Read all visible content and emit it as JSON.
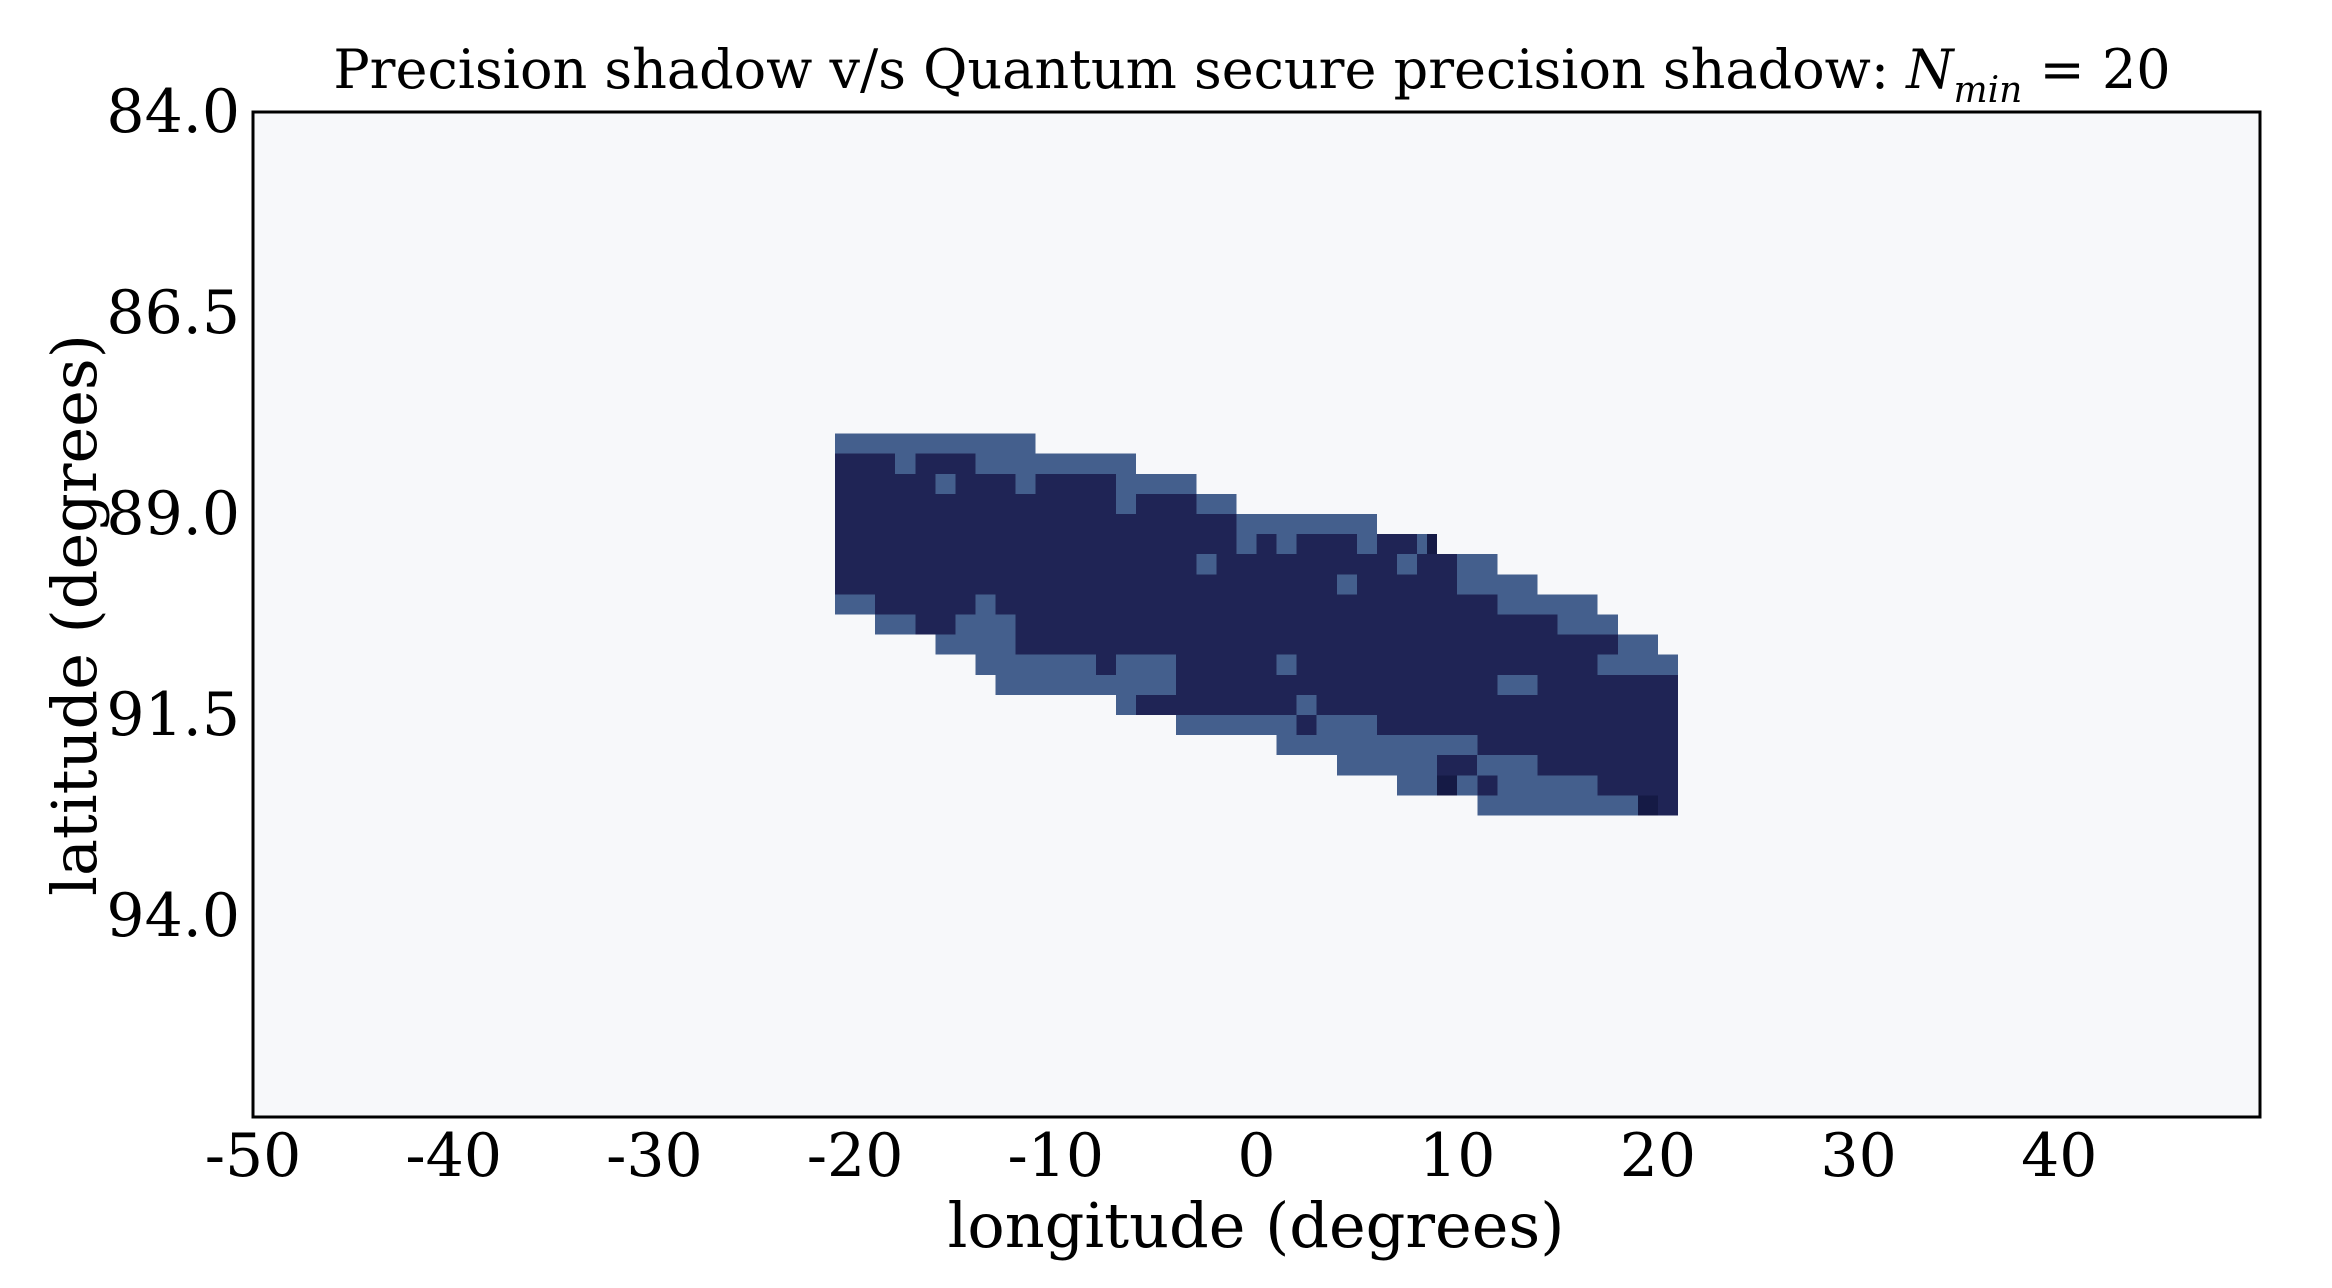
{
  "chart_data": {
    "type": "heatmap",
    "title": "Precision shadow v/s Quantum secure precision shadow: ",
    "title_math": {
      "symbol": "N",
      "subscript": "min",
      "relation": " = ",
      "value": "20"
    },
    "xlabel": "longitude (degrees)",
    "ylabel": "latitude (degrees)",
    "xlim": [
      -50,
      50
    ],
    "ylim": [
      96.5,
      84.0
    ],
    "y_inverted": true,
    "xticks": [
      -50,
      -40,
      -30,
      -20,
      -10,
      0,
      10,
      20,
      30,
      40
    ],
    "xtick_labels": [
      "-50",
      "-40",
      "-30",
      "-20",
      "-10",
      "0",
      "10",
      "20",
      "30",
      "40"
    ],
    "yticks": [
      84.0,
      86.5,
      89.0,
      91.5,
      94.0
    ],
    "ytick_labels": [
      "84.0",
      "86.5",
      "89.0",
      "91.5",
      "94.0"
    ],
    "cell_size": {
      "lon": 2.0,
      "lat": 0.5
    },
    "colors": {
      "background": "#f7f8fa",
      "precision_shadow": "#445f8d",
      "quantum_secure": "#1f2455",
      "quantum_secure_peak": "#151a45",
      "frame": "#000000"
    },
    "grid": false,
    "legend": "none",
    "rows": [
      {
        "lat": 88.0,
        "cells": [
          [
            -21,
            -11,
            "p"
          ]
        ]
      },
      {
        "lat": 88.25,
        "cells": [
          [
            -21,
            -6,
            "p"
          ],
          [
            -21,
            -18,
            "q"
          ],
          [
            -17,
            -14,
            "q"
          ]
        ]
      },
      {
        "lat": 88.5,
        "cells": [
          [
            -21,
            -3,
            "p"
          ],
          [
            -21,
            -16,
            "q"
          ],
          [
            -15,
            -12,
            "q"
          ],
          [
            -11,
            -7,
            "q"
          ]
        ]
      },
      {
        "lat": 88.75,
        "cells": [
          [
            -21,
            -1,
            "p"
          ],
          [
            -21,
            -7,
            "q"
          ],
          [
            -6,
            -3,
            "q"
          ]
        ]
      },
      {
        "lat": 89.0,
        "cells": [
          [
            -21,
            6,
            "p"
          ],
          [
            -21,
            -1,
            "q"
          ]
        ]
      },
      {
        "lat": 89.25,
        "cells": [
          [
            -21,
            9,
            "p"
          ],
          [
            -21,
            -1,
            "q"
          ],
          [
            0,
            1,
            "q"
          ],
          [
            2,
            5,
            "q"
          ],
          [
            6,
            8,
            "q"
          ],
          [
            8.5,
            9,
            "k"
          ]
        ]
      },
      {
        "lat": 89.5,
        "cells": [
          [
            -21,
            12,
            "p"
          ],
          [
            -21,
            -3,
            "q"
          ],
          [
            -2,
            7,
            "q"
          ],
          [
            8,
            10,
            "q"
          ]
        ]
      },
      {
        "lat": 89.75,
        "cells": [
          [
            -21,
            14,
            "p"
          ],
          [
            -21,
            4,
            "q"
          ],
          [
            5,
            10,
            "q"
          ]
        ]
      },
      {
        "lat": 90.0,
        "cells": [
          [
            -21,
            17,
            "p"
          ],
          [
            -19,
            -14,
            "q"
          ],
          [
            -13,
            12,
            "q"
          ]
        ]
      },
      {
        "lat": 90.25,
        "cells": [
          [
            -19,
            18,
            "p"
          ],
          [
            -17,
            -15,
            "q"
          ],
          [
            -12,
            15,
            "q"
          ]
        ]
      },
      {
        "lat": 90.5,
        "cells": [
          [
            -16,
            20,
            "p"
          ],
          [
            -12,
            18,
            "q"
          ]
        ]
      },
      {
        "lat": 90.75,
        "cells": [
          [
            -14,
            21,
            "p"
          ],
          [
            -8,
            -7,
            "q"
          ],
          [
            -4,
            1,
            "q"
          ],
          [
            2,
            17,
            "q"
          ]
        ]
      },
      {
        "lat": 91.0,
        "cells": [
          [
            -13,
            21,
            "p"
          ],
          [
            -4,
            12,
            "q"
          ],
          [
            14,
            21,
            "q"
          ]
        ]
      },
      {
        "lat": 91.25,
        "cells": [
          [
            -7,
            21,
            "p"
          ],
          [
            -6,
            2,
            "q"
          ],
          [
            3,
            21,
            "q"
          ]
        ]
      },
      {
        "lat": 91.5,
        "cells": [
          [
            -4,
            21,
            "p"
          ],
          [
            2,
            3,
            "q"
          ],
          [
            6,
            21,
            "q"
          ]
        ]
      },
      {
        "lat": 91.75,
        "cells": [
          [
            1,
            21,
            "p"
          ],
          [
            11,
            21,
            "q"
          ]
        ]
      },
      {
        "lat": 92.0,
        "cells": [
          [
            4,
            21,
            "p"
          ],
          [
            9,
            11,
            "q"
          ],
          [
            14,
            21,
            "q"
          ]
        ]
      },
      {
        "lat": 92.25,
        "cells": [
          [
            7,
            21,
            "p"
          ],
          [
            9,
            10,
            "k"
          ],
          [
            11,
            12,
            "q"
          ],
          [
            17,
            21,
            "q"
          ]
        ]
      },
      {
        "lat": 92.5,
        "cells": [
          [
            11,
            21,
            "p"
          ],
          [
            19,
            20,
            "k"
          ],
          [
            20,
            21,
            "q"
          ]
        ]
      }
    ]
  }
}
